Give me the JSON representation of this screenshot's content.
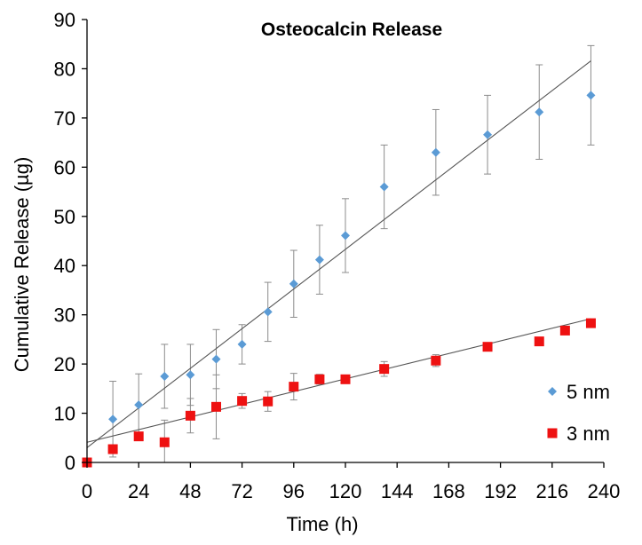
{
  "chart_data": {
    "type": "scatter",
    "title": "Osteocalcin Release",
    "xlabel": "Time (h)",
    "ylabel": "Cumulative Release (µg)",
    "xlim": [
      0,
      240
    ],
    "ylim": [
      0,
      90
    ],
    "xticks": [
      0,
      24,
      48,
      72,
      96,
      120,
      144,
      168,
      192,
      216,
      240
    ],
    "yticks": [
      0,
      10,
      20,
      30,
      40,
      50,
      60,
      70,
      80,
      90
    ],
    "grid": false,
    "legend_position": "bottom-right",
    "series": [
      {
        "name": "5 nm",
        "marker": "diamond",
        "color": "#5b9bd5",
        "points": [
          {
            "x": 0,
            "y": 0,
            "err": 0
          },
          {
            "x": 12,
            "y": 8.8,
            "err": 7.7
          },
          {
            "x": 24,
            "y": 11.7,
            "err": 6.3
          },
          {
            "x": 36,
            "y": 17.5,
            "err": 6.5
          },
          {
            "x": 48,
            "y": 17.8,
            "err": 6.2
          },
          {
            "x": 60,
            "y": 21.0,
            "err": 6.0
          },
          {
            "x": 72,
            "y": 24.0,
            "err": 4.0
          },
          {
            "x": 84,
            "y": 30.6,
            "err": 6.0
          },
          {
            "x": 96,
            "y": 36.3,
            "err": 6.8
          },
          {
            "x": 108,
            "y": 41.2,
            "err": 7.0
          },
          {
            "x": 120,
            "y": 46.1,
            "err": 7.5
          },
          {
            "x": 138,
            "y": 56.0,
            "err": 8.5
          },
          {
            "x": 162,
            "y": 63.0,
            "err": 8.7
          },
          {
            "x": 186,
            "y": 66.6,
            "err": 8.0
          },
          {
            "x": 210,
            "y": 71.2,
            "err": 9.6
          },
          {
            "x": 234,
            "y": 74.6,
            "err": 10.1
          }
        ],
        "trendline": {
          "x": [
            0,
            234
          ],
          "y": [
            3.0,
            81.6
          ]
        }
      },
      {
        "name": "3 nm",
        "marker": "square",
        "color": "#ee1111",
        "points": [
          {
            "x": 0,
            "y": 0,
            "err": 0
          },
          {
            "x": 12,
            "y": 2.7,
            "err": 0.8
          },
          {
            "x": 24,
            "y": 5.3,
            "err": 0.8
          },
          {
            "x": 36,
            "y": 4.1,
            "err": 4.5
          },
          {
            "x": 48,
            "y": 9.5,
            "err": 3.5
          },
          {
            "x": 60,
            "y": 11.3,
            "err": 6.5
          },
          {
            "x": 72,
            "y": 12.5,
            "err": 1.5
          },
          {
            "x": 84,
            "y": 12.4,
            "err": 2.0
          },
          {
            "x": 96,
            "y": 15.4,
            "err": 2.7
          },
          {
            "x": 108,
            "y": 16.9,
            "err": 1.0
          },
          {
            "x": 120,
            "y": 16.9,
            "err": 0.6
          },
          {
            "x": 138,
            "y": 19.0,
            "err": 1.5
          },
          {
            "x": 162,
            "y": 20.7,
            "err": 1.2
          },
          {
            "x": 186,
            "y": 23.5,
            "err": 0.5
          },
          {
            "x": 210,
            "y": 24.6,
            "err": 0.5
          },
          {
            "x": 222,
            "y": 26.8,
            "err": 0.5
          },
          {
            "x": 234,
            "y": 28.3,
            "err": 0.5
          }
        ],
        "trendline": {
          "x": [
            0,
            234
          ],
          "y": [
            4.1,
            29.2
          ]
        }
      }
    ]
  }
}
